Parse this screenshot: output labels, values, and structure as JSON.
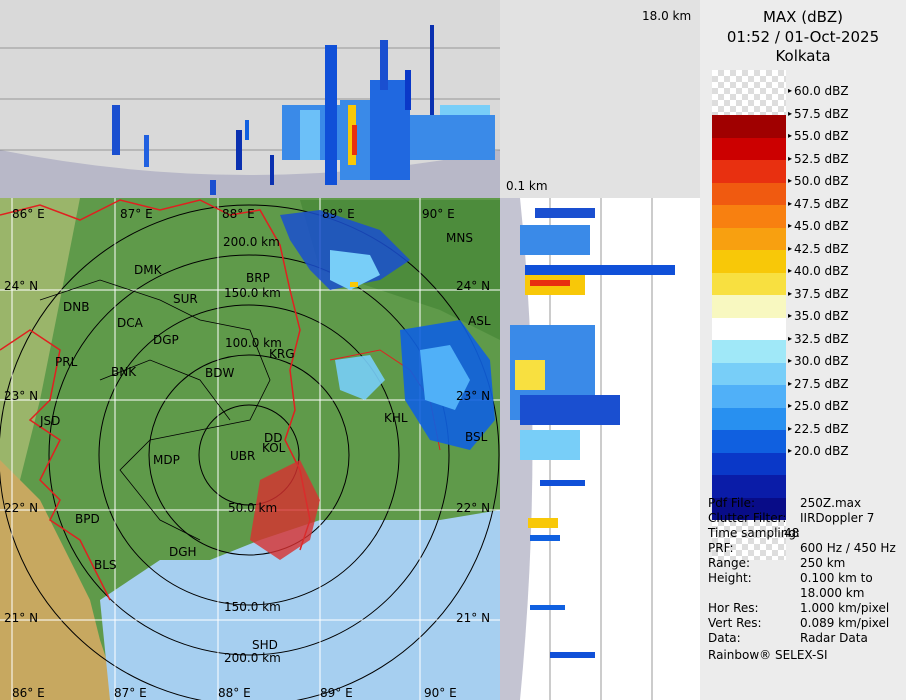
{
  "header": {
    "product": "MAX (dBZ)",
    "datetime": "01:52 / 01-Oct-2025",
    "station": "Kolkata"
  },
  "height_labels": {
    "top": "18.0 km",
    "bottom": "0.1 km"
  },
  "map": {
    "lon_labels": [
      "86° E",
      "87° E",
      "88° E",
      "89° E",
      "90° E"
    ],
    "lat_labels": [
      "24° N",
      "23° N",
      "22° N",
      "21° N"
    ],
    "range_labels": [
      "50.0 km",
      "100.0 km",
      "150.0 km",
      "200.0 km"
    ],
    "cities": [
      "MNS",
      "DMK",
      "BRP",
      "DNB",
      "SUR",
      "ASL",
      "DCA",
      "DGP",
      "KRG",
      "PRL",
      "BNK",
      "BDW",
      "JSD",
      "KHL",
      "BSL",
      "DD",
      "KOL",
      "MDP",
      "UBR",
      "BPD",
      "DGH",
      "BLS",
      "SHD"
    ],
    "colors": {
      "land": "#5f9a4a",
      "sea": "#a6cff0",
      "bay": "#8fc2ec",
      "border_red": "#e02020",
      "district": "#000000",
      "grid": "#ffffff"
    }
  },
  "legend": {
    "levels": [
      "60.0 dBZ",
      "57.5 dBZ",
      "55.0 dBZ",
      "52.5 dBZ",
      "50.0 dBZ",
      "47.5 dBZ",
      "45.0 dBZ",
      "42.5 dBZ",
      "40.0 dBZ",
      "37.5 dBZ",
      "35.0 dBZ",
      "32.5 dBZ",
      "30.0 dBZ",
      "27.5 dBZ",
      "25.0 dBZ",
      "22.5 dBZ",
      "20.0 dBZ"
    ],
    "colors": [
      "#a00000",
      "#cc0000",
      "#e83010",
      "#f05a10",
      "#f88010",
      "#f8a010",
      "#f8c808",
      "#f8e040",
      "#f8f8c0",
      "#ffffff",
      "#a0e8f8",
      "#78cef8",
      "#50b0f8",
      "#2890f0",
      "#1060e0",
      "#0a38c8",
      "#0a1ca8",
      "#080c88"
    ]
  },
  "info": [
    {
      "key": "Pdf File:",
      "val": "250Z.max"
    },
    {
      "key": "Clutter Filter:",
      "val": "IIRDoppler 7"
    },
    {
      "key": "Time sampling:",
      "val": "48"
    },
    {
      "key": "PRF:",
      "val": "600 Hz / 450 Hz"
    },
    {
      "key": "Range:",
      "val": "250 km"
    },
    {
      "key": "Height:",
      "val": "0.100 km to"
    },
    {
      "key": "",
      "val": "18.000 km"
    },
    {
      "key": "Hor Res:",
      "val": "1.000 km/pixel"
    },
    {
      "key": "Vert Res:",
      "val": "0.089 km/pixel"
    },
    {
      "key": "Data:",
      "val": "Radar Data"
    }
  ],
  "footer": "Rainbow® SELEX-SI"
}
